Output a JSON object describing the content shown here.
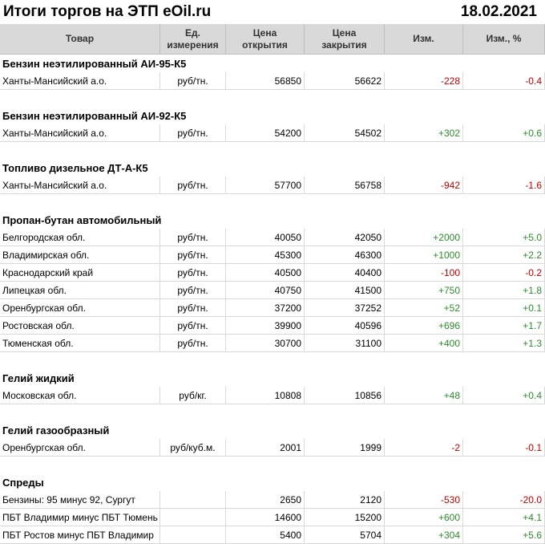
{
  "title": "Итоги торгов на ЭТП eOil.ru",
  "date": "18.02.2021",
  "table": {
    "columns": [
      "Товар",
      "Ед. измерения",
      "Цена открытия",
      "Цена закрытия",
      "Изм.",
      "Изм., %"
    ],
    "groups": [
      {
        "name": "Бензин неэтилированный АИ-95-К5",
        "rows": [
          [
            "Ханты-Мансийский а.о.",
            "руб/тн.",
            56850,
            56622,
            "-228",
            "-0.4"
          ]
        ]
      },
      {
        "name": "Бензин неэтилированный АИ-92-К5",
        "rows": [
          [
            "Ханты-Мансийский а.о.",
            "руб/тн.",
            54200,
            54502,
            "+302",
            "+0.6"
          ]
        ]
      },
      {
        "name": "Топливо дизельное ДТ-А-К5",
        "rows": [
          [
            "Ханты-Мансийский а.о.",
            "руб/тн.",
            57700,
            56758,
            "-942",
            "-1.6"
          ]
        ]
      },
      {
        "name": "Пропан-бутан автомобильный",
        "rows": [
          [
            "Белгородская обл.",
            "руб/тн.",
            40050,
            42050,
            "+2000",
            "+5.0"
          ],
          [
            "Владимирская обл.",
            "руб/тн.",
            45300,
            46300,
            "+1000",
            "+2.2"
          ],
          [
            "Краснодарский край",
            "руб/тн.",
            40500,
            40400,
            "-100",
            "-0.2"
          ],
          [
            "Липецкая обл.",
            "руб/тн.",
            40750,
            41500,
            "+750",
            "+1.8"
          ],
          [
            "Оренбургская обл.",
            "руб/тн.",
            37200,
            37252,
            "+52",
            "+0.1"
          ],
          [
            "Ростовская обл.",
            "руб/тн.",
            39900,
            40596,
            "+696",
            "+1.7"
          ],
          [
            "Тюменская обл.",
            "руб/тн.",
            30700,
            31100,
            "+400",
            "+1.3"
          ]
        ]
      },
      {
        "name": "Гелий жидкий",
        "rows": [
          [
            "Московская обл.",
            "руб/кг.",
            10808,
            10856,
            "+48",
            "+0.4"
          ]
        ]
      },
      {
        "name": "Гелий газообразный",
        "rows": [
          [
            "Оренбургская обл.",
            "руб/куб.м.",
            2001,
            1999,
            "-2",
            "-0.1"
          ]
        ]
      },
      {
        "name": "Спреды",
        "rows": [
          [
            "Бензины: 95 минус 92, Сургут",
            "",
            2650,
            2120,
            "-530",
            "-20.0"
          ],
          [
            "ПБТ Владимир минус ПБТ Тюмень",
            "",
            14600,
            15200,
            "+600",
            "+4.1"
          ],
          [
            "ПБТ Ростов минус ПБТ Владимир",
            "",
            5400,
            5704,
            "+304",
            "+5.6"
          ]
        ]
      }
    ]
  }
}
